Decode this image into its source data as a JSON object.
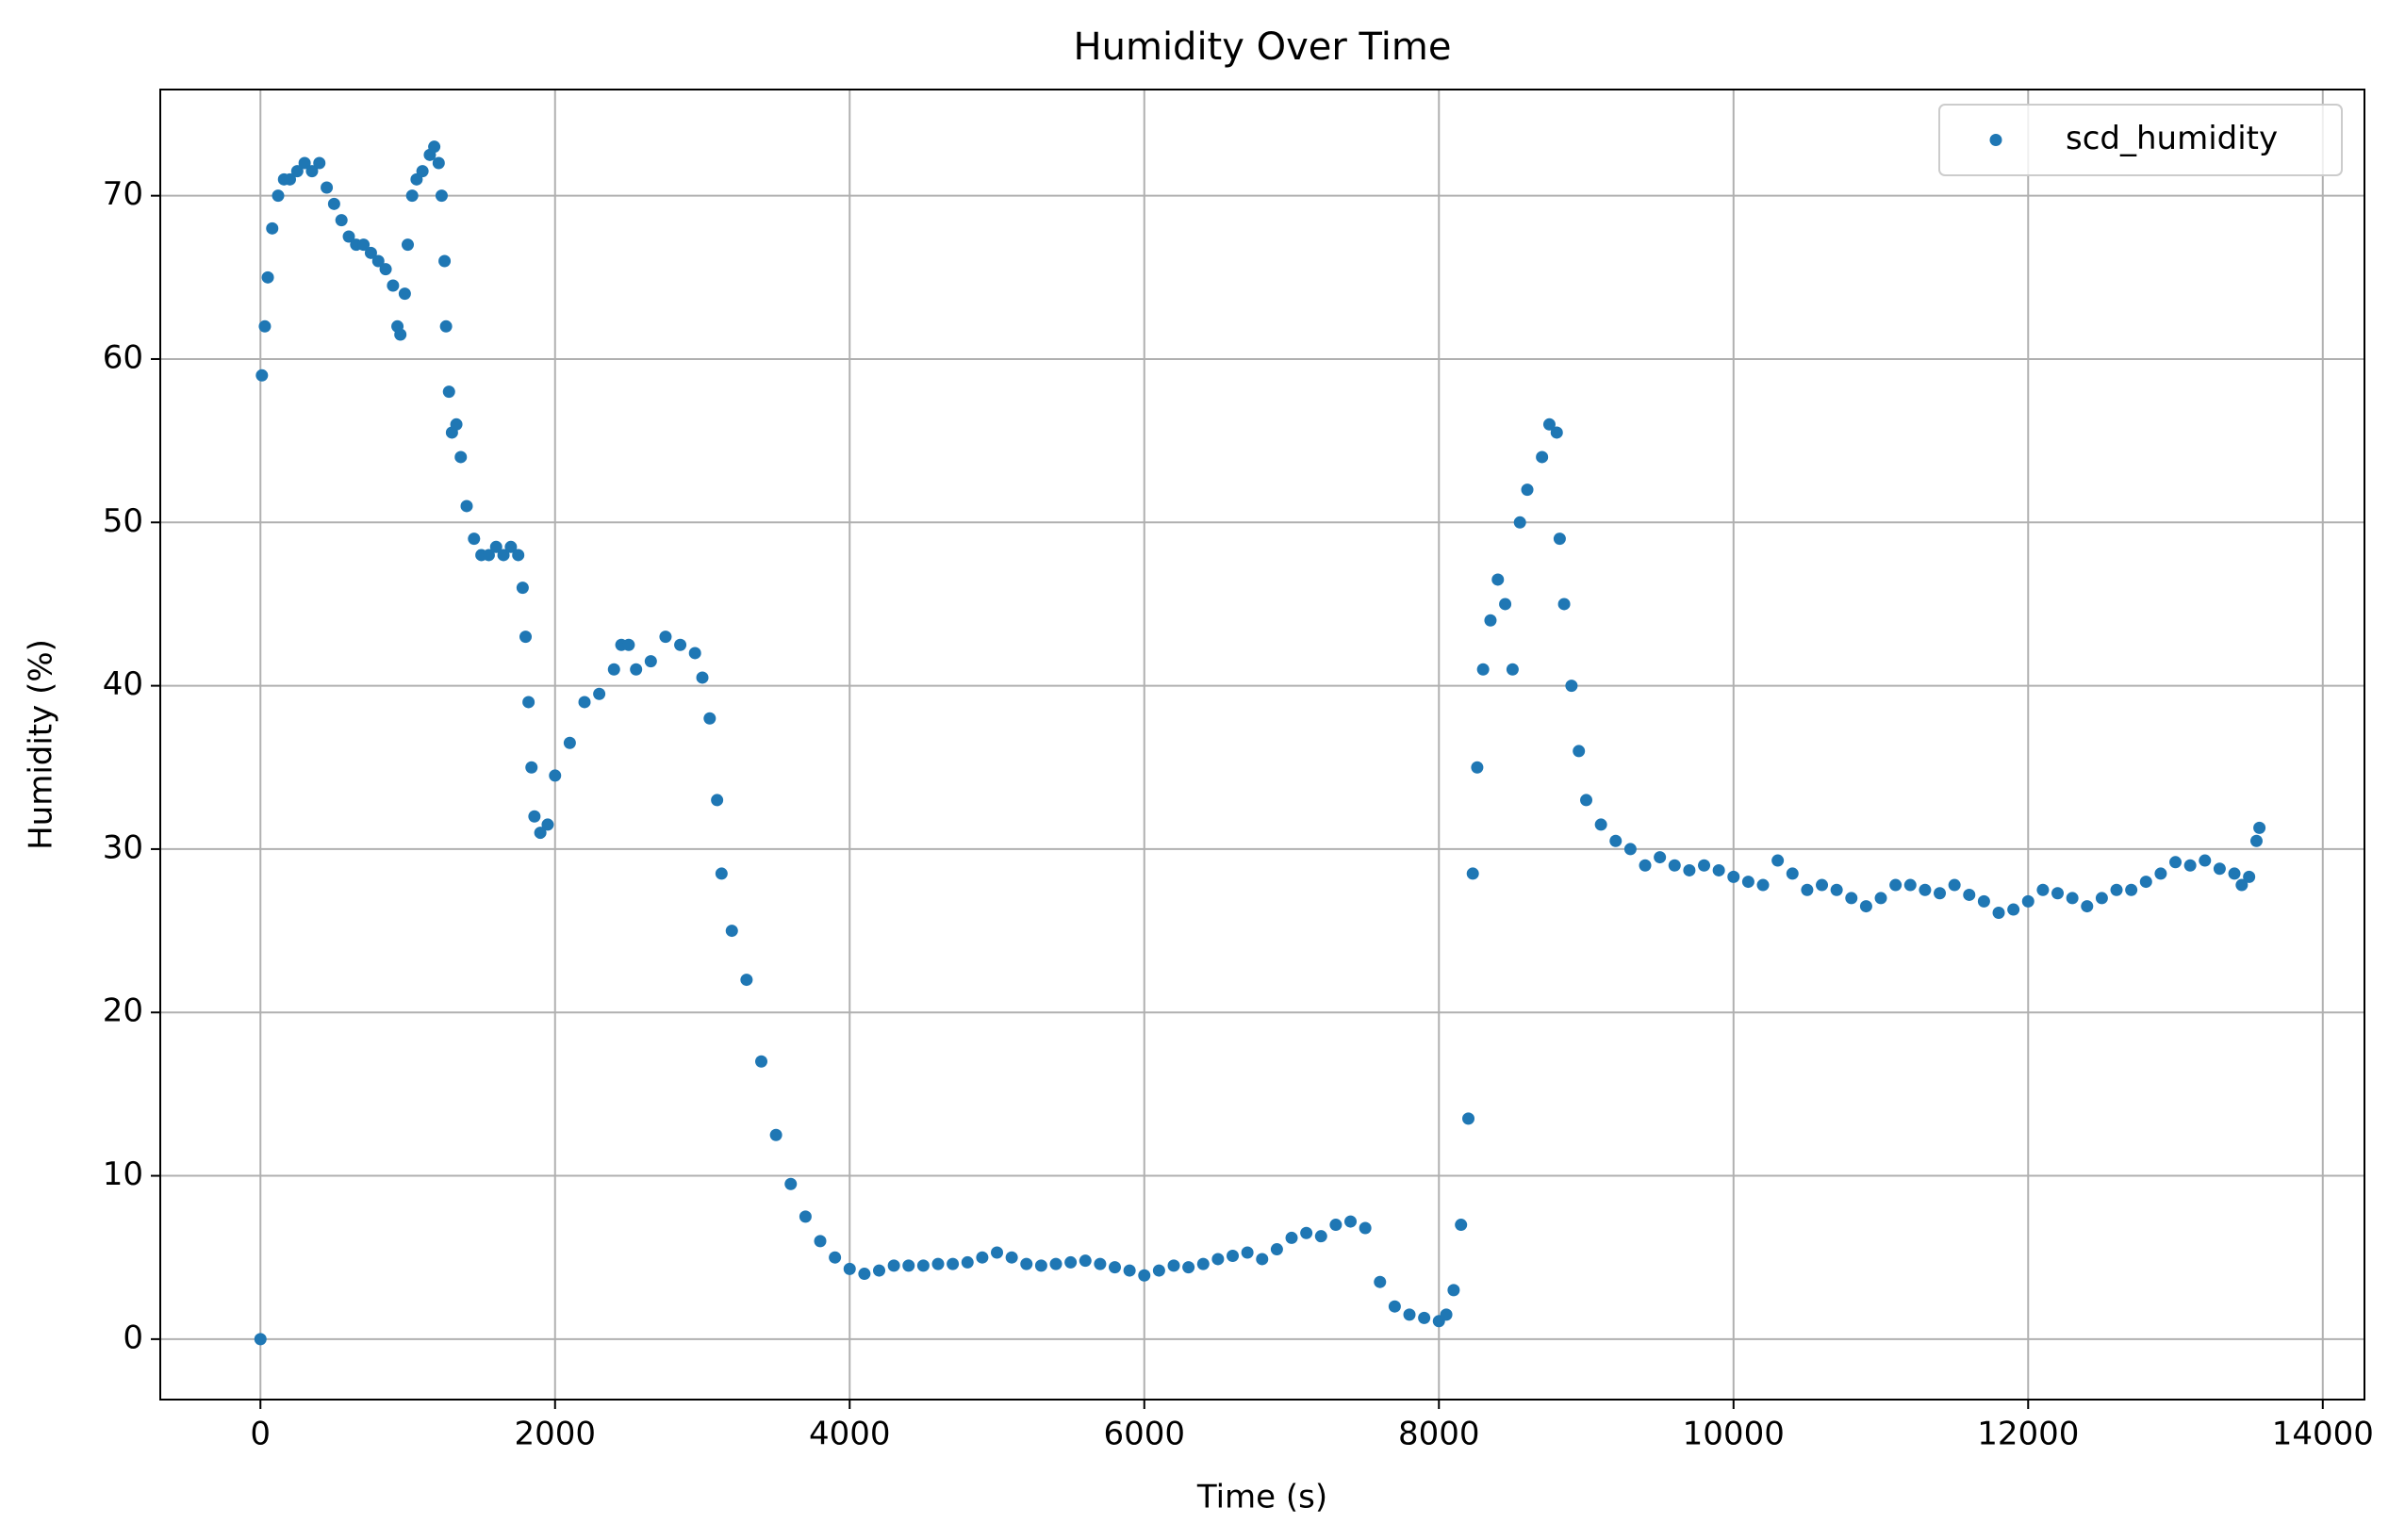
{
  "chart_data": {
    "type": "scatter",
    "title": "Humidity Over Time",
    "x_label": "Time (s)",
    "y_label": "Humidity (%)",
    "x": [
      0,
      10,
      30,
      50,
      80,
      120,
      160,
      200,
      250,
      300,
      350,
      400,
      450,
      500,
      550,
      600,
      650,
      700,
      750,
      800,
      850,
      900,
      930,
      950,
      980,
      1000,
      1030,
      1060,
      1100,
      1150,
      1180,
      1210,
      1230,
      1250,
      1260,
      1280,
      1300,
      1330,
      1360,
      1400,
      1450,
      1500,
      1550,
      1600,
      1650,
      1700,
      1750,
      1780,
      1800,
      1820,
      1840,
      1860,
      1900,
      1950,
      2000,
      2100,
      2200,
      2300,
      2400,
      2450,
      2500,
      2550,
      2650,
      2750,
      2850,
      2950,
      3000,
      3050,
      3100,
      3130,
      3200,
      3300,
      3400,
      3500,
      3600,
      3700,
      3800,
      3900,
      4000,
      4100,
      4200,
      4300,
      4400,
      4500,
      4600,
      4700,
      4800,
      4900,
      5000,
      5100,
      5200,
      5300,
      5400,
      5500,
      5600,
      5700,
      5800,
      5900,
      6000,
      6100,
      6200,
      6300,
      6400,
      6500,
      6600,
      6700,
      6800,
      6900,
      7000,
      7100,
      7200,
      7300,
      7400,
      7500,
      7600,
      7700,
      7800,
      7900,
      8000,
      8050,
      8100,
      8150,
      8200,
      8230,
      8260,
      8300,
      8350,
      8400,
      8450,
      8500,
      8550,
      8600,
      8700,
      8750,
      8800,
      8820,
      8850,
      8900,
      8950,
      9000,
      9100,
      9200,
      9300,
      9400,
      9500,
      9600,
      9700,
      9800,
      9900,
      10000,
      10100,
      10200,
      10300,
      10400,
      10500,
      10600,
      10700,
      10800,
      10900,
      11000,
      11100,
      11200,
      11300,
      11400,
      11500,
      11600,
      11700,
      11800,
      11900,
      12000,
      12100,
      12200,
      12300,
      12400,
      12500,
      12600,
      12700,
      12800,
      12900,
      13000,
      13100,
      13200,
      13300,
      13400,
      13450,
      13500,
      13550,
      13570
    ],
    "series": [
      {
        "name": "scd_humidity",
        "color": "#1f77b4",
        "values": [
          0,
          59,
          62,
          65,
          68,
          70,
          71,
          71,
          71.5,
          72,
          71.5,
          72,
          70.5,
          69.5,
          68.5,
          67.5,
          67,
          67,
          66.5,
          66,
          65.5,
          64.5,
          62,
          61.5,
          64,
          67,
          70,
          71,
          71.5,
          72.5,
          73,
          72,
          70,
          66,
          62,
          58,
          55.5,
          56,
          54,
          51,
          49,
          48,
          48,
          48.5,
          48,
          48.5,
          48,
          46,
          43,
          39,
          35,
          32,
          31,
          31.5,
          34.5,
          36.5,
          39,
          39.5,
          41,
          42.5,
          42.5,
          41,
          41.5,
          43,
          42.5,
          42,
          40.5,
          38,
          33,
          28.5,
          25,
          22,
          17,
          12.5,
          9.5,
          7.5,
          6,
          5,
          4.3,
          4,
          4.2,
          4.5,
          4.5,
          4.5,
          4.6,
          4.6,
          4.7,
          5,
          5.3,
          5,
          4.6,
          4.5,
          4.6,
          4.7,
          4.8,
          4.6,
          4.4,
          4.2,
          3.9,
          4.2,
          4.5,
          4.4,
          4.6,
          4.9,
          5.1,
          5.3,
          4.9,
          5.5,
          6.2,
          6.5,
          6.3,
          7,
          7.2,
          6.8,
          3.5,
          2,
          1.5,
          1.3,
          1.1,
          1.5,
          3,
          7,
          13.5,
          28.5,
          35,
          41,
          44,
          46.5,
          45,
          41,
          50,
          52,
          54,
          56,
          55.5,
          49,
          45,
          40,
          36,
          33,
          31.5,
          30.5,
          30,
          29,
          29.5,
          29,
          28.7,
          29,
          28.7,
          28.3,
          28,
          27.8,
          29.3,
          28.5,
          27.5,
          27.8,
          27.5,
          27,
          26.5,
          27,
          27.8,
          27.8,
          27.5,
          27.3,
          27.8,
          27.2,
          26.8,
          26.1,
          26.3,
          26.8,
          27.5,
          27.3,
          27,
          26.5,
          27,
          27.5,
          27.5,
          28,
          28.5,
          29.2,
          29,
          29.3,
          28.8,
          28.5,
          27.8,
          28.3,
          30.5,
          31.3
        ]
      }
    ],
    "xlim": [
      -680,
      14283
    ],
    "ylim": [
      -3.7,
      76.5
    ],
    "xticks": [
      0,
      2000,
      4000,
      6000,
      8000,
      10000,
      12000,
      14000
    ],
    "yticks": [
      0,
      10,
      20,
      30,
      40,
      50,
      60,
      70
    ],
    "grid": true,
    "legend": "upper right"
  }
}
